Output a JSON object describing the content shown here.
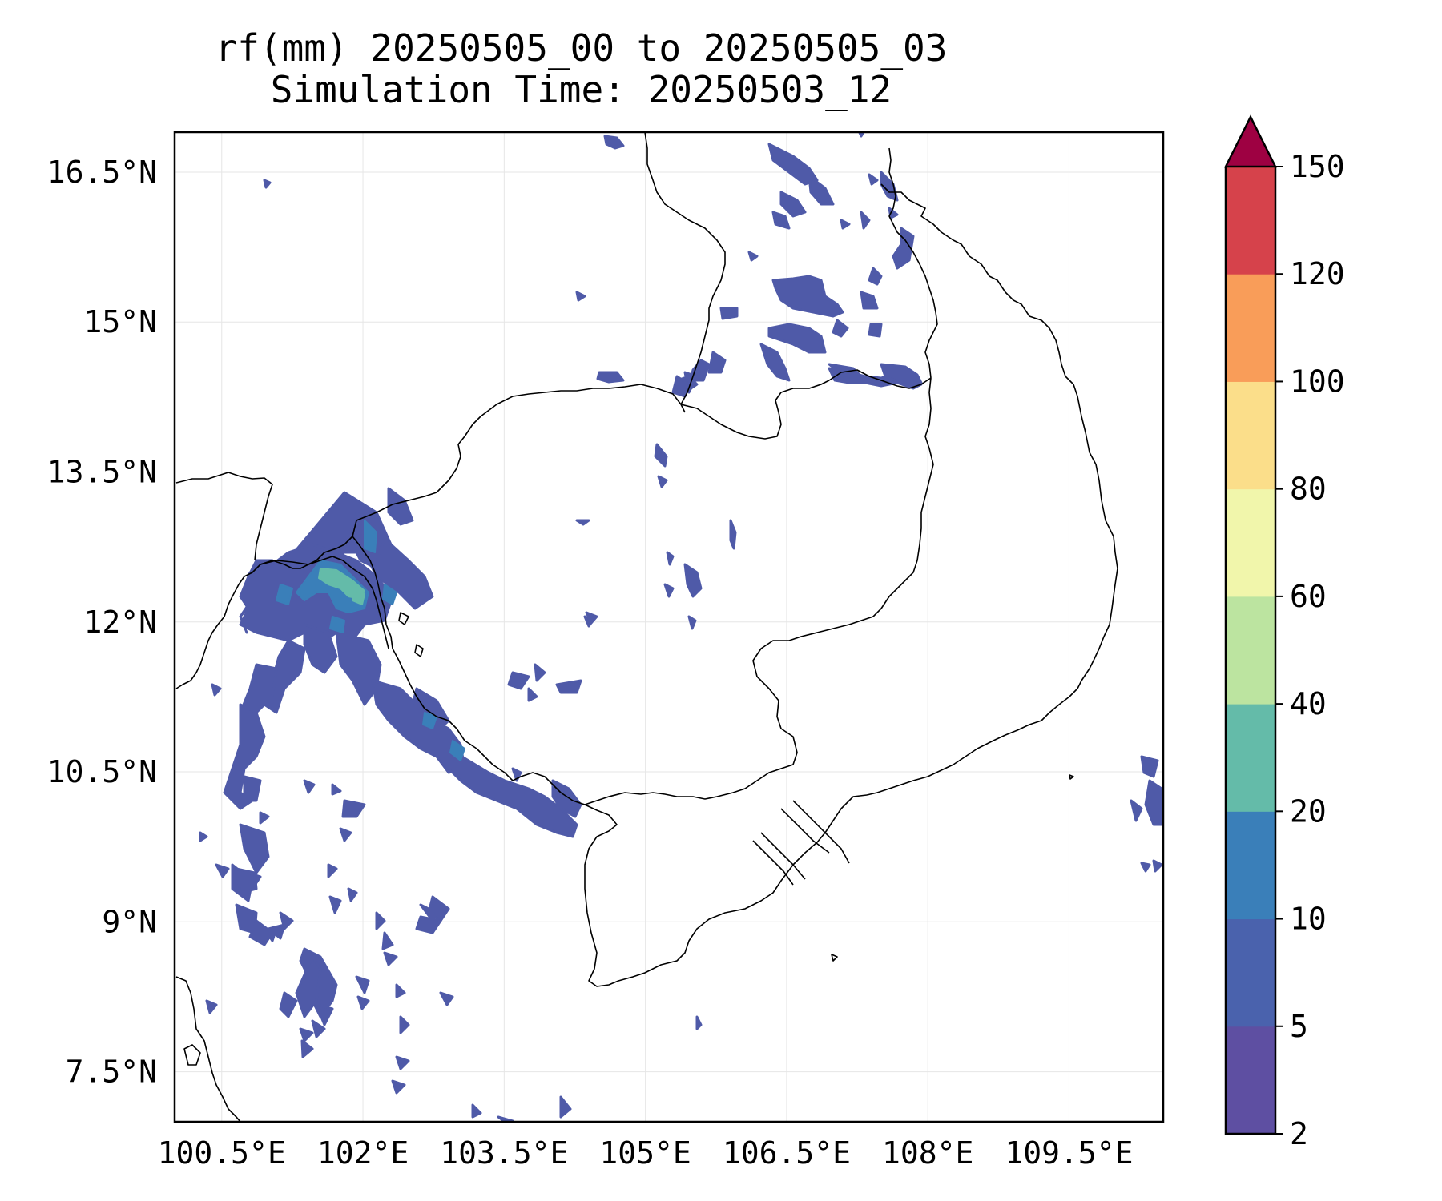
{
  "title_line1": "rf(mm) 20250505_00 to 20250505_03",
  "title_line2": "Simulation Time: 20250503_12",
  "map": {
    "lon_range": [
      100.0,
      110.5
    ],
    "lat_range": [
      7.0,
      16.9
    ],
    "x_ticks": [
      "100.5°E",
      "102°E",
      "103.5°E",
      "105°E",
      "106.5°E",
      "108°E",
      "109.5°E"
    ],
    "y_ticks": [
      "16.5°N",
      "15°N",
      "13.5°N",
      "12°N",
      "10.5°N",
      "9°N",
      "7.5°N"
    ],
    "gridlines": true,
    "coastline_color": "#000000"
  },
  "colorbar": {
    "levels": [
      "2",
      "5",
      "10",
      "20",
      "40",
      "60",
      "80",
      "100",
      "120",
      "150"
    ],
    "colors": [
      "#5e4fa2",
      "#4a62ad",
      "#3a7fb9",
      "#64bba9",
      "#bce4a0",
      "#f1f6ab",
      "#fbde8a",
      "#f99d59",
      "#d6424b",
      "#9e0142"
    ],
    "extend": "max"
  }
}
